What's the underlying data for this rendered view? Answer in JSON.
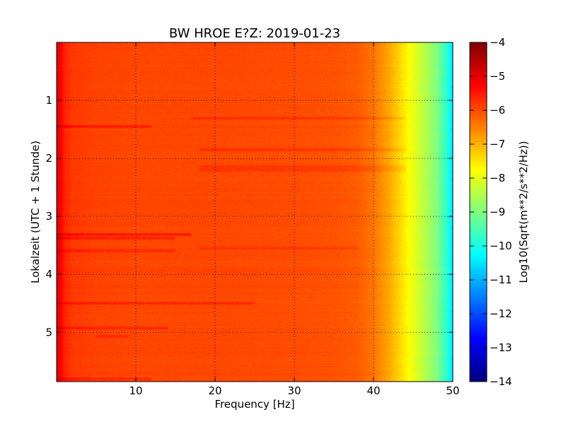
{
  "chart_data": {
    "type": "heatmap",
    "title": "BW HROE E?Z: 2019-01-23",
    "xlabel": "Frequency [Hz]",
    "ylabel": "Lokalzeit (UTC + 1 Stunde)",
    "xlim": [
      0,
      50
    ],
    "ylim": [
      5.85,
      0
    ],
    "x_ticks": [
      10,
      20,
      30,
      40,
      50
    ],
    "y_ticks": [
      1,
      2,
      3,
      4,
      5
    ],
    "grid": true,
    "colormap": "jet",
    "colorbar": {
      "label": "Log10(Sqrt(m**2/s**2/Hz))",
      "range": [
        -14,
        -4
      ],
      "ticks": [
        -4,
        -5,
        -6,
        -7,
        -8,
        -9,
        -10,
        -11,
        -12,
        -13,
        -14
      ]
    },
    "spectrum_profile": {
      "frequency": [
        0,
        0.5,
        1,
        2,
        5,
        10,
        20,
        30,
        35,
        38,
        40,
        42,
        44,
        46,
        48,
        49.5,
        50
      ],
      "value": [
        -4.9,
        -5.2,
        -5.6,
        -5.8,
        -5.9,
        -5.95,
        -5.95,
        -6.0,
        -6.05,
        -6.15,
        -6.4,
        -6.9,
        -7.6,
        -8.3,
        -9.0,
        -10.0,
        -10.6
      ]
    },
    "bands": [
      {
        "time": 1.45,
        "f_min": 0,
        "f_max": 12,
        "delta": 0.35
      },
      {
        "time": 3.32,
        "f_min": 0,
        "f_max": 17,
        "delta": 0.45
      },
      {
        "time": 3.38,
        "f_min": 0,
        "f_max": 15,
        "delta": 0.35
      },
      {
        "time": 3.6,
        "f_min": 0,
        "f_max": 15,
        "delta": 0.3
      },
      {
        "time": 4.5,
        "f_min": 0,
        "f_max": 25,
        "delta": 0.35
      },
      {
        "time": 4.92,
        "f_min": 0,
        "f_max": 14,
        "delta": 0.3
      },
      {
        "time": 5.07,
        "f_min": 5,
        "f_max": 9,
        "delta": 0.3
      },
      {
        "time": 5.8,
        "f_min": 0,
        "f_max": 12,
        "delta": 0.3
      },
      {
        "time": 1.3,
        "f_min": 17,
        "f_max": 44,
        "delta": 0.25
      },
      {
        "time": 1.85,
        "f_min": 18,
        "f_max": 44,
        "delta": 0.25
      },
      {
        "time": 2.15,
        "f_min": 18,
        "f_max": 44,
        "delta": 0.2
      },
      {
        "time": 2.2,
        "f_min": 18,
        "f_max": 44,
        "delta": 0.2
      },
      {
        "time": 3.55,
        "f_min": 18,
        "f_max": 38,
        "delta": 0.2
      }
    ]
  }
}
